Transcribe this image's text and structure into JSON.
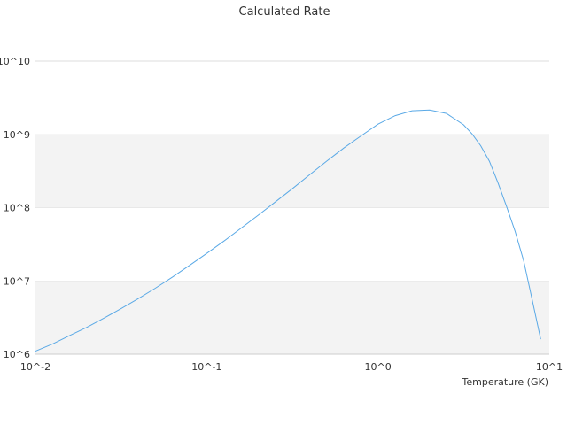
{
  "chart_data": {
    "type": "line",
    "title": "Calculated Rate",
    "xlabel": "Temperature (GK)",
    "ylabel": "",
    "x_scale": "log",
    "y_scale": "log",
    "xlim": [
      0.01,
      10
    ],
    "ylim": [
      1000000,
      10000000000
    ],
    "grid": "horizontal alternating bands",
    "legend": "none",
    "x_ticks": [
      {
        "value": 0.01,
        "label": "10^-2"
      },
      {
        "value": 0.1,
        "label": "10^-1"
      },
      {
        "value": 1,
        "label": "10^0"
      },
      {
        "value": 10,
        "label": "10^1"
      }
    ],
    "y_ticks": [
      {
        "value": 1000000,
        "label": "10^6"
      },
      {
        "value": 10000000,
        "label": "10^7"
      },
      {
        "value": 100000000,
        "label": "10^8"
      },
      {
        "value": 1000000000,
        "label": "10^9"
      },
      {
        "value": 10000000000,
        "label": "10^10"
      }
    ],
    "series": [
      {
        "color": "#5aa9e6",
        "x": [
          0.01,
          0.0126,
          0.0158,
          0.02,
          0.0251,
          0.0316,
          0.0398,
          0.0501,
          0.0631,
          0.0794,
          0.1,
          0.126,
          0.158,
          0.2,
          0.251,
          0.316,
          0.398,
          0.501,
          0.631,
          0.794,
          1.0,
          1.26,
          1.58,
          2.0,
          2.51,
          3.16,
          3.55,
          3.98,
          4.47,
          5.01,
          5.62,
          6.31,
          7.08,
          7.94,
          8.91
        ],
        "y": [
          1100000,
          1380000,
          1790000,
          2330000,
          3100000,
          4180000,
          5730000,
          7950000,
          11300000,
          16300000,
          23700000,
          34900000,
          52000000,
          79000000,
          119000000,
          181000000,
          280000000,
          430000000,
          650000000,
          950000000,
          1380000000,
          1800000000,
          2100000000,
          2150000000,
          1930000000,
          1350000000,
          1010000000,
          700000000,
          430000000,
          220000000,
          105000000,
          48000000,
          19000000,
          5600000,
          1600000
        ]
      }
    ]
  }
}
